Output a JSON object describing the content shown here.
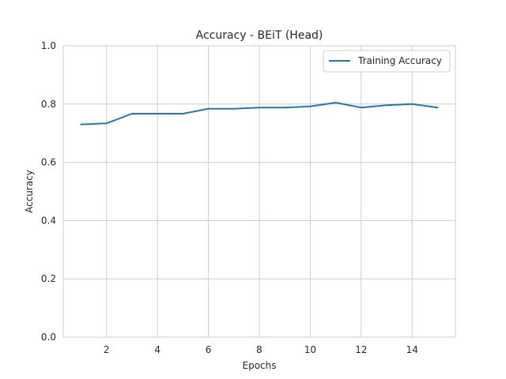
{
  "chart_data": {
    "type": "line",
    "title": "Accuracy - BEiT (Head)",
    "xlabel": "Epochs",
    "ylabel": "Accuracy",
    "x": [
      1,
      2,
      3,
      4,
      5,
      6,
      7,
      8,
      9,
      10,
      11,
      12,
      13,
      14,
      15
    ],
    "series": [
      {
        "name": "Training Accuracy",
        "color": "#1f77b4",
        "values": [
          0.73,
          0.734,
          0.767,
          0.767,
          0.767,
          0.784,
          0.784,
          0.788,
          0.788,
          0.792,
          0.805,
          0.788,
          0.796,
          0.8,
          0.788
        ]
      }
    ],
    "xlim": [
      0.3,
      15.7
    ],
    "ylim": [
      0.0,
      1.0
    ],
    "xticks": [
      2,
      4,
      6,
      8,
      10,
      12,
      14
    ],
    "xtick_labels": [
      "2",
      "4",
      "6",
      "8",
      "10",
      "12",
      "14"
    ],
    "yticks": [
      0.0,
      0.2,
      0.4,
      0.6,
      0.8,
      1.0
    ],
    "ytick_labels": [
      "0.0",
      "0.2",
      "0.4",
      "0.6",
      "0.8",
      "1.0"
    ],
    "grid": true,
    "legend_position": "top-right"
  }
}
